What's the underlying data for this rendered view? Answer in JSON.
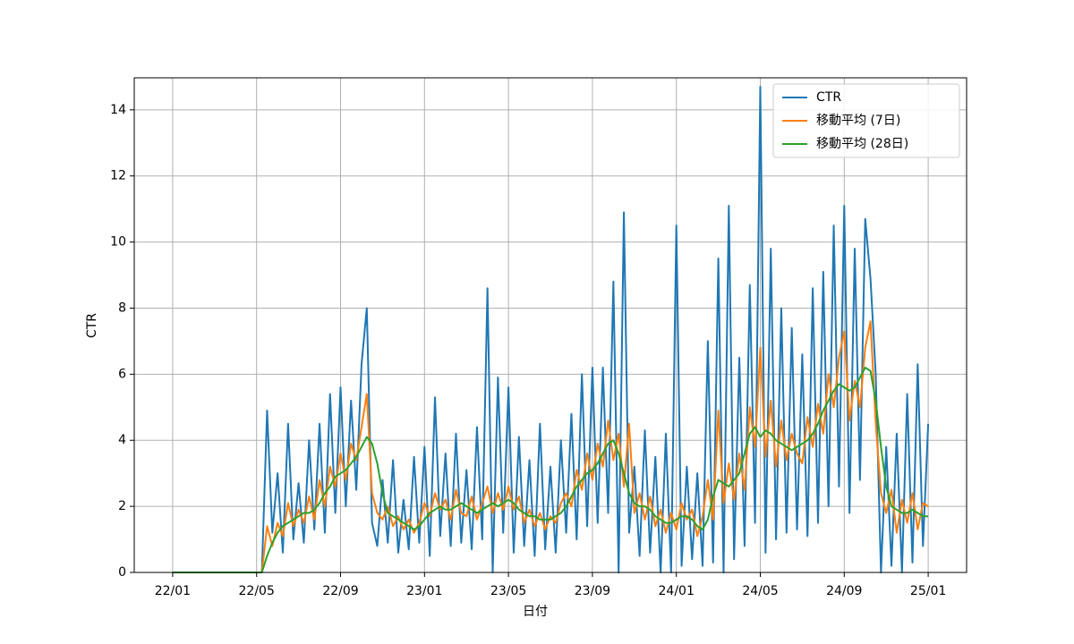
{
  "chart_data": {
    "type": "line",
    "x_label": "日付",
    "y_label": "CTR",
    "xlim": [
      -1.83,
      37.83
    ],
    "ylim": [
      0,
      14.97
    ],
    "xticks": [
      {
        "value": 0,
        "label": "22/01"
      },
      {
        "value": 4,
        "label": "22/05"
      },
      {
        "value": 8,
        "label": "22/09"
      },
      {
        "value": 12,
        "label": "23/01"
      },
      {
        "value": 16,
        "label": "23/05"
      },
      {
        "value": 20,
        "label": "23/09"
      },
      {
        "value": 24,
        "label": "24/01"
      },
      {
        "value": 28,
        "label": "24/05"
      },
      {
        "value": 32,
        "label": "24/09"
      },
      {
        "value": 36,
        "label": "25/01"
      }
    ],
    "yticks": [
      0,
      2,
      4,
      6,
      8,
      10,
      12,
      14
    ],
    "grid": true,
    "legend": "upper right",
    "x": [
      0,
      0.25,
      0.5,
      0.75,
      1,
      1.25,
      1.5,
      1.75,
      2,
      2.25,
      2.5,
      2.75,
      3,
      3.25,
      3.5,
      3.75,
      4,
      4.25,
      4.5,
      4.75,
      5,
      5.25,
      5.5,
      5.75,
      6,
      6.25,
      6.5,
      6.75,
      7,
      7.25,
      7.5,
      7.75,
      8,
      8.25,
      8.5,
      8.75,
      9,
      9.25,
      9.5,
      9.75,
      10,
      10.25,
      10.5,
      10.75,
      11,
      11.25,
      11.5,
      11.75,
      12,
      12.25,
      12.5,
      12.75,
      13,
      13.25,
      13.5,
      13.75,
      14,
      14.25,
      14.5,
      14.75,
      15,
      15.25,
      15.5,
      15.75,
      16,
      16.25,
      16.5,
      16.75,
      17,
      17.25,
      17.5,
      17.75,
      18,
      18.25,
      18.5,
      18.75,
      19,
      19.25,
      19.5,
      19.75,
      20,
      20.25,
      20.5,
      20.75,
      21,
      21.25,
      21.5,
      21.75,
      22,
      22.25,
      22.5,
      22.75,
      23,
      23.25,
      23.5,
      23.75,
      24,
      24.25,
      24.5,
      24.75,
      25,
      25.25,
      25.5,
      25.75,
      26,
      26.25,
      26.5,
      26.75,
      27,
      27.25,
      27.5,
      27.75,
      28,
      28.25,
      28.5,
      28.75,
      29,
      29.25,
      29.5,
      29.75,
      30,
      30.25,
      30.5,
      30.75,
      31,
      31.25,
      31.5,
      31.75,
      32,
      32.25,
      32.5,
      32.75,
      33,
      33.25,
      33.5,
      33.75,
      34,
      34.25,
      34.5,
      34.75,
      35,
      35.25,
      35.5,
      35.75,
      36
    ],
    "series": [
      {
        "name": "CTR",
        "color": "#1f77b4",
        "values": [
          0,
          0,
          0,
          0,
          0,
          0,
          0,
          0,
          0,
          0,
          0,
          0,
          0,
          0,
          0,
          0,
          0,
          0,
          4.9,
          1.2,
          3.0,
          0.6,
          4.5,
          1.0,
          2.7,
          0.9,
          4.0,
          1.3,
          4.5,
          1.2,
          5.4,
          1.8,
          5.6,
          2.0,
          5.2,
          2.5,
          6.3,
          8.0,
          1.5,
          0.8,
          2.8,
          0.9,
          3.4,
          0.6,
          2.2,
          0.7,
          3.5,
          0.9,
          3.8,
          0.5,
          5.3,
          1.1,
          3.6,
          0.8,
          4.2,
          0.9,
          3.1,
          0.7,
          4.4,
          1.0,
          8.6,
          0.0,
          5.9,
          1.2,
          5.6,
          0.6,
          4.1,
          0.8,
          3.4,
          0.5,
          4.5,
          0.7,
          3.2,
          0.6,
          4.0,
          1.2,
          4.8,
          1.0,
          6.0,
          1.4,
          6.2,
          1.5,
          6.2,
          1.8,
          8.8,
          0.0,
          10.9,
          1.2,
          3.2,
          0.5,
          4.3,
          0.6,
          3.5,
          0.0,
          4.2,
          0.0,
          10.5,
          0.2,
          3.2,
          0.4,
          3.0,
          0.2,
          7.0,
          0.3,
          9.5,
          0.0,
          11.1,
          0.4,
          6.5,
          0.8,
          8.7,
          1.5,
          14.7,
          0.6,
          9.8,
          1.0,
          8.0,
          1.2,
          7.4,
          1.3,
          6.6,
          1.1,
          8.6,
          1.5,
          9.1,
          2.0,
          10.5,
          2.6,
          11.1,
          1.8,
          9.8,
          2.8,
          10.7,
          8.9,
          6.0,
          0.0,
          3.8,
          0.2,
          4.2,
          0.0,
          5.4,
          0.3,
          6.3,
          0.8,
          4.5
        ]
      },
      {
        "name": "移動平均 (7日)",
        "color": "#ff7f0e",
        "values": [
          0,
          0,
          0,
          0,
          0,
          0,
          0,
          0,
          0,
          0,
          0,
          0,
          0,
          0,
          0,
          0,
          0,
          0,
          1.4,
          0.8,
          1.5,
          1.1,
          2.1,
          1.4,
          1.9,
          1.5,
          2.3,
          1.6,
          2.8,
          2.0,
          3.2,
          2.6,
          3.6,
          2.8,
          3.9,
          3.4,
          4.4,
          5.4,
          2.4,
          1.8,
          1.6,
          2.0,
          1.4,
          1.7,
          1.3,
          1.6,
          1.2,
          1.5,
          2.1,
          1.7,
          2.4,
          1.9,
          2.2,
          1.6,
          2.5,
          1.8,
          1.7,
          2.3,
          1.6,
          2.1,
          2.6,
          1.8,
          2.4,
          1.9,
          2.6,
          1.9,
          2.3,
          1.5,
          1.9,
          1.4,
          1.8,
          1.3,
          1.7,
          1.5,
          2.1,
          2.4,
          2.0,
          3.1,
          2.5,
          3.6,
          2.8,
          3.9,
          3.2,
          4.6,
          3.4,
          4.2,
          2.6,
          4.5,
          1.8,
          2.4,
          1.6,
          2.3,
          1.4,
          1.9,
          1.2,
          1.8,
          1.3,
          2.1,
          1.6,
          1.9,
          1.1,
          1.7,
          2.8,
          1.6,
          4.9,
          2.1,
          3.3,
          2.2,
          3.6,
          2.5,
          5.0,
          3.8,
          6.8,
          3.5,
          5.2,
          3.2,
          4.6,
          3.4,
          4.2,
          3.6,
          3.3,
          4.7,
          3.8,
          5.1,
          4.2,
          6.0,
          5.0,
          6.5,
          7.3,
          4.6,
          5.8,
          5.0,
          6.8,
          7.6,
          4.5,
          2.4,
          1.8,
          2.5,
          1.2,
          2.2,
          1.5,
          2.4,
          1.3,
          2.1,
          2.0
        ]
      },
      {
        "name": "移動平均 (28日)",
        "color": "#2ca02c",
        "values": [
          0,
          0,
          0,
          0,
          0,
          0,
          0,
          0,
          0,
          0,
          0,
          0,
          0,
          0,
          0,
          0,
          0,
          0,
          0.5,
          0.9,
          1.2,
          1.4,
          1.5,
          1.6,
          1.7,
          1.8,
          1.8,
          1.9,
          2.1,
          2.4,
          2.6,
          2.9,
          3.0,
          3.1,
          3.3,
          3.5,
          3.8,
          4.1,
          3.9,
          3.3,
          2.4,
          1.8,
          1.7,
          1.6,
          1.5,
          1.4,
          1.3,
          1.4,
          1.6,
          1.8,
          1.9,
          2.0,
          1.9,
          1.9,
          2.0,
          2.1,
          2.0,
          1.9,
          1.8,
          1.9,
          2.0,
          2.1,
          2.0,
          2.1,
          2.2,
          2.1,
          1.9,
          1.8,
          1.7,
          1.7,
          1.6,
          1.6,
          1.6,
          1.7,
          1.8,
          2.0,
          2.3,
          2.6,
          2.8,
          3.0,
          3.1,
          3.3,
          3.6,
          3.9,
          4.0,
          3.6,
          3.0,
          2.4,
          2.1,
          2.0,
          2.0,
          1.9,
          1.7,
          1.6,
          1.5,
          1.5,
          1.6,
          1.7,
          1.7,
          1.6,
          1.4,
          1.3,
          1.6,
          2.3,
          2.8,
          2.7,
          2.6,
          2.8,
          3.0,
          3.6,
          4.2,
          4.4,
          4.1,
          4.3,
          4.2,
          4.0,
          3.9,
          3.8,
          3.7,
          3.8,
          3.9,
          4.0,
          4.2,
          4.5,
          4.9,
          5.2,
          5.5,
          5.7,
          5.6,
          5.5,
          5.6,
          5.9,
          6.2,
          6.1,
          5.2,
          3.8,
          2.6,
          2.0,
          1.9,
          1.8,
          1.8,
          1.9,
          1.8,
          1.7,
          1.7
        ]
      }
    ]
  }
}
